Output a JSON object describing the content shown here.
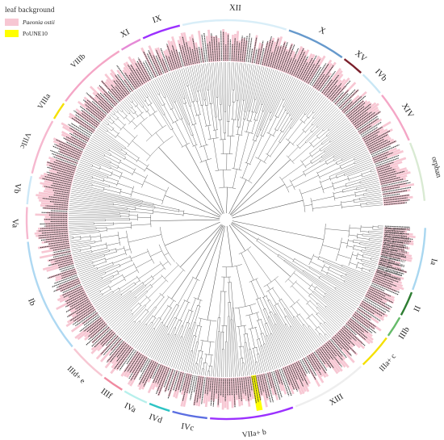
{
  "legend": {
    "title": "leaf background",
    "items": [
      {
        "label": "Paeonia ostii",
        "color": "#f7c7d3",
        "italic": true
      },
      {
        "label": "PoUNE10",
        "color": "#ffff00",
        "italic": false
      }
    ]
  },
  "colors": {
    "branch": "#555555",
    "ostii_leaf": "#f7c7d3",
    "highlight_leaf": "#ffff00",
    "leaf_text": "#333333"
  },
  "clades": [
    {
      "name": "XII",
      "color": "#d9eef8",
      "a0": -103,
      "a1": -72
    },
    {
      "name": "X",
      "color": "#6699cc",
      "a0": -72,
      "a1": -54
    },
    {
      "name": "XV",
      "color": "#7a1f2b",
      "a0": -54,
      "a1": -47
    },
    {
      "name": "IVb",
      "color": "#c9e7f5",
      "a0": -47,
      "a1": -39
    },
    {
      "name": "XIV",
      "color": "#f4a6c6",
      "a0": -39,
      "a1": -23
    },
    {
      "name": "orphan",
      "color": "#d9ead3",
      "a0": -23,
      "a1": -5
    },
    {
      "name": "Ia",
      "color": "#a9d7f0",
      "a0": 2,
      "a1": 21
    },
    {
      "name": "II",
      "color": "#2e7d32",
      "a0": 21,
      "a1": 29
    },
    {
      "name": "IIIb",
      "color": "#66bb6a",
      "a0": 29,
      "a1": 36
    },
    {
      "name": "IIIa+ c",
      "color": "#f5e000",
      "a0": 36,
      "a1": 47
    },
    {
      "name": "XIII",
      "color": "#eeeeee",
      "a0": 47,
      "a1": 70
    },
    {
      "name": "VIIa+ b",
      "color": "#9b30ff",
      "a0": 70,
      "a1": 95
    },
    {
      "name": "IVc",
      "color": "#5b6ee1",
      "a0": 95,
      "a1": 106
    },
    {
      "name": "IVd",
      "color": "#2ec4c4",
      "a0": 106,
      "a1": 113
    },
    {
      "name": "IVa",
      "color": "#b7f0ec",
      "a0": 113,
      "a1": 121
    },
    {
      "name": "IIIf",
      "color": "#f08aa0",
      "a0": 121,
      "a1": 128
    },
    {
      "name": "IIId+ e",
      "color": "#f7c7d3",
      "a0": 128,
      "a1": 140
    },
    {
      "name": "Ib",
      "color": "#aed8f2",
      "a0": 140,
      "a1": 174
    },
    {
      "name": "Va",
      "color": "#f6b8cf",
      "a0": 174,
      "a1": 184
    },
    {
      "name": "Vb",
      "color": "#cde8f7",
      "a0": 184,
      "a1": 193
    },
    {
      "name": "VIIIc",
      "color": "#f6b8cf",
      "a0": 193,
      "a1": 210
    },
    {
      "name": "VIIIa",
      "color": "#f5e000",
      "a0": 210,
      "a1": 216
    },
    {
      "name": "VIIIb",
      "color": "#f4a6c6",
      "a0": 216,
      "a1": 238
    },
    {
      "name": "XI",
      "color": "#e58ad6",
      "a0": 238,
      "a1": 245
    },
    {
      "name": "IX",
      "color": "#9b30ff",
      "a0": 245,
      "a1": 257
    }
  ],
  "leaves": [
    "Pos_gene54782",
    "AT1G24140",
    "Pos_gene45110",
    "Pos_gene46310",
    "Pos_gene10641",
    "Pos_gene13081",
    "Pos_gene21001",
    "Pos_gene27427",
    "Pos_gene35783",
    "Pos_gene12619",
    "Pos_gene33517",
    "Pos_gene19458"
  ]
}
